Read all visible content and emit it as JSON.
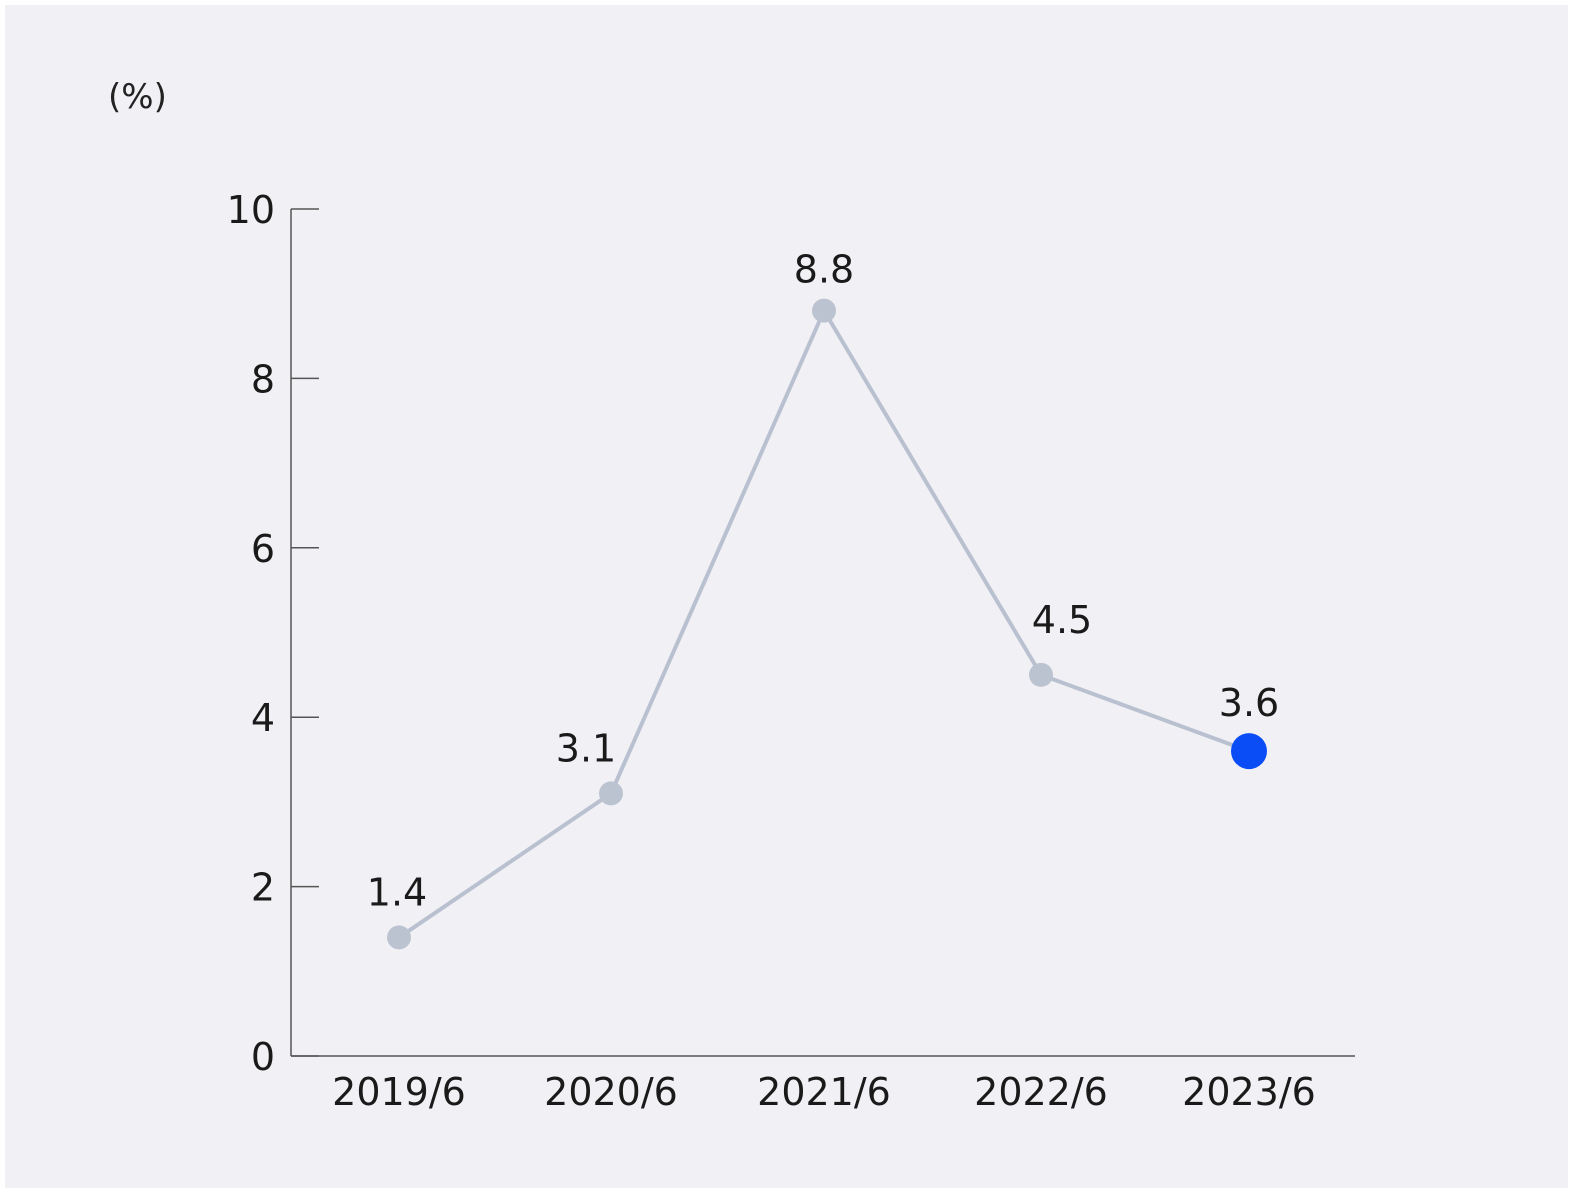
{
  "chart_data": {
    "type": "line",
    "unit_label": "(%)",
    "categories": [
      "2019/6",
      "2020/6",
      "2021/6",
      "2022/6",
      "2023/6"
    ],
    "values": [
      1.4,
      3.1,
      8.8,
      4.5,
      3.6
    ],
    "value_labels": [
      "1.4",
      "3.1",
      "8.8",
      "4.5",
      "3.6"
    ],
    "ylim": [
      0,
      10
    ],
    "yticks": [
      0,
      2,
      4,
      6,
      8,
      10
    ],
    "ytick_labels": [
      "0",
      "2",
      "4",
      "6",
      "8",
      "10"
    ],
    "grid": false,
    "colors": {
      "line": "#b9c0cf",
      "point": "#bcc3d0",
      "highlight_point": "#0a4cf5",
      "axis": "#555555",
      "background": "#f1f1f5"
    },
    "highlight_index": 4
  }
}
